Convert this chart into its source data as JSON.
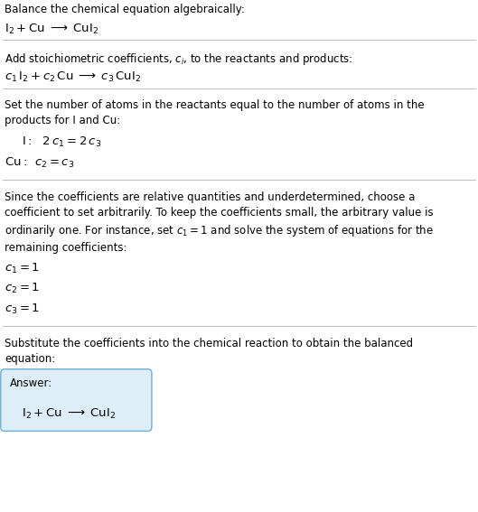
{
  "bg_color": "#ffffff",
  "text_color": "#000000",
  "line_color": "#bbbbbb",
  "fs_body": 8.5,
  "fs_eq": 9.5,
  "answer_box_color": "#deeef8",
  "answer_box_border": "#6ab0d8",
  "sections": [
    {
      "type": "text",
      "content": "Balance the chemical equation algebraically:"
    },
    {
      "type": "math",
      "content": "$\\mathrm{I_2 + Cu} \\;\\longrightarrow\\; \\mathrm{CuI_2}$"
    },
    {
      "type": "hline"
    },
    {
      "type": "vspace",
      "size": 0.012
    },
    {
      "type": "text",
      "content": "Add stoichiometric coefficients, $c_i$, to the reactants and products:"
    },
    {
      "type": "math",
      "content": "$c_1\\,\\mathrm{I_2} + c_2\\,\\mathrm{Cu} \\;\\longrightarrow\\; c_3\\,\\mathrm{CuI_2}$"
    },
    {
      "type": "hline"
    },
    {
      "type": "vspace",
      "size": 0.012
    },
    {
      "type": "text",
      "content": "Set the number of atoms in the reactants equal to the number of atoms in the\nproducts for I and Cu:"
    },
    {
      "type": "math_indented",
      "indent": 0.035,
      "content": "$\\mathrm{I{:}\\;\\;\\,2\\,}c_1 = 2\\,c_3$"
    },
    {
      "type": "math",
      "content": "$\\mathrm{Cu{:}\\;}\\,c_2 = c_3$"
    },
    {
      "type": "vspace",
      "size": 0.012
    },
    {
      "type": "hline"
    },
    {
      "type": "vspace",
      "size": 0.012
    },
    {
      "type": "text",
      "content": "Since the coefficients are relative quantities and underdetermined, choose a\ncoefficient to set arbitrarily. To keep the coefficients small, the arbitrary value is\nordinarily one. For instance, set $c_1 = 1$ and solve the system of equations for the\nremaining coefficients:"
    },
    {
      "type": "math",
      "content": "$c_1 = 1$"
    },
    {
      "type": "math",
      "content": "$c_2 = 1$"
    },
    {
      "type": "math",
      "content": "$c_3 = 1$"
    },
    {
      "type": "vspace",
      "size": 0.012
    },
    {
      "type": "hline"
    },
    {
      "type": "vspace",
      "size": 0.012
    },
    {
      "type": "text",
      "content": "Substitute the coefficients into the chemical reaction to obtain the balanced\nequation:"
    },
    {
      "type": "answer_box",
      "label": "Answer:",
      "eq": "$\\mathrm{I_2 + Cu} \\;\\longrightarrow\\; \\mathrm{CuI_2}$"
    }
  ]
}
